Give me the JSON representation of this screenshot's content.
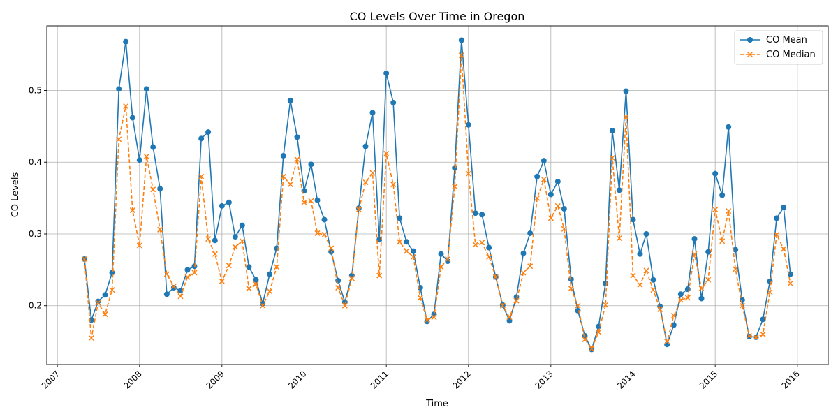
{
  "chart_data": {
    "type": "line",
    "title": "CO Levels Over Time in Oregon",
    "xlabel": "Time",
    "ylabel": "CO Levels",
    "xlim": [
      "2006-11-15",
      "2016-05-17"
    ],
    "ylim": [
      0.118,
      0.59
    ],
    "x_ticks": [
      "2007",
      "2008",
      "2009",
      "2010",
      "2011",
      "2012",
      "2013",
      "2014",
      "2015",
      "2016"
    ],
    "y_ticks": [
      "0.2",
      "0.3",
      "0.4",
      "0.5"
    ],
    "grid": true,
    "legend_position": "top-right",
    "x": [
      "2007-05",
      "2007-06",
      "2007-07",
      "2007-08",
      "2007-09",
      "2007-10",
      "2007-11",
      "2007-12",
      "2008-01",
      "2008-02",
      "2008-03",
      "2008-04",
      "2008-05",
      "2008-06",
      "2008-07",
      "2008-08",
      "2008-09",
      "2008-10",
      "2008-11",
      "2008-12",
      "2009-01",
      "2009-02",
      "2009-03",
      "2009-04",
      "2009-05",
      "2009-06",
      "2009-07",
      "2009-08",
      "2009-09",
      "2009-10",
      "2009-11",
      "2009-12",
      "2010-01",
      "2010-02",
      "2010-03",
      "2010-04",
      "2010-05",
      "2010-06",
      "2010-07",
      "2010-08",
      "2010-09",
      "2010-10",
      "2010-11",
      "2010-12",
      "2011-01",
      "2011-02",
      "2011-03",
      "2011-04",
      "2011-05",
      "2011-06",
      "2011-07",
      "2011-08",
      "2011-09",
      "2011-10",
      "2011-11",
      "2011-12",
      "2012-01",
      "2012-02",
      "2012-03",
      "2012-04",
      "2012-05",
      "2012-06",
      "2012-07",
      "2012-08",
      "2012-09",
      "2012-10",
      "2012-11",
      "2012-12",
      "2013-01",
      "2013-02",
      "2013-03",
      "2013-04",
      "2013-05",
      "2013-06",
      "2013-07",
      "2013-08",
      "2013-09",
      "2013-10",
      "2013-11",
      "2013-12",
      "2014-01",
      "2014-02",
      "2014-03",
      "2014-04",
      "2014-05",
      "2014-06",
      "2014-07",
      "2014-08",
      "2014-09",
      "2014-10",
      "2014-11",
      "2014-12",
      "2015-01",
      "2015-02",
      "2015-03",
      "2015-04",
      "2015-05",
      "2015-06",
      "2015-07",
      "2015-08",
      "2015-09",
      "2015-10",
      "2015-11",
      "2015-12"
    ],
    "series": [
      {
        "name": "CO Mean",
        "color": "#1f77b4",
        "linestyle": "solid",
        "marker": "circle",
        "values": [
          0.265,
          0.18,
          0.206,
          0.215,
          0.246,
          0.502,
          0.568,
          0.462,
          0.403,
          0.502,
          0.421,
          0.363,
          0.216,
          0.225,
          0.221,
          0.25,
          0.255,
          0.433,
          0.442,
          0.291,
          0.339,
          0.344,
          0.296,
          0.312,
          0.254,
          0.236,
          0.203,
          0.244,
          0.28,
          0.409,
          0.486,
          0.435,
          0.36,
          0.397,
          0.347,
          0.32,
          0.275,
          0.235,
          0.205,
          0.242,
          0.336,
          0.422,
          0.469,
          0.292,
          0.524,
          0.483,
          0.322,
          0.289,
          0.276,
          0.225,
          0.178,
          0.188,
          0.272,
          0.262,
          0.392,
          0.57,
          0.452,
          0.329,
          0.327,
          0.281,
          0.24,
          0.201,
          0.179,
          0.212,
          0.273,
          0.301,
          0.38,
          0.402,
          0.355,
          0.373,
          0.335,
          0.237,
          0.193,
          0.158,
          0.139,
          0.171,
          0.231,
          0.444,
          0.361,
          0.499,
          0.32,
          0.272,
          0.3,
          0.236,
          0.199,
          0.146,
          0.173,
          0.216,
          0.223,
          0.293,
          0.21,
          0.275,
          0.384,
          0.354,
          0.449,
          0.278,
          0.208,
          0.157,
          0.156,
          0.181,
          0.234,
          0.322,
          0.337,
          0.244
        ]
      },
      {
        "name": "CO Median",
        "color": "#ff7f0e",
        "linestyle": "dashed",
        "marker": "x",
        "values": [
          0.265,
          0.155,
          0.204,
          0.188,
          0.222,
          0.432,
          0.478,
          0.333,
          0.284,
          0.408,
          0.362,
          0.306,
          0.244,
          0.227,
          0.213,
          0.24,
          0.246,
          0.38,
          0.293,
          0.272,
          0.234,
          0.256,
          0.282,
          0.29,
          0.224,
          0.23,
          0.2,
          0.22,
          0.254,
          0.38,
          0.369,
          0.404,
          0.344,
          0.346,
          0.301,
          0.299,
          0.28,
          0.225,
          0.2,
          0.238,
          0.334,
          0.372,
          0.385,
          0.242,
          0.412,
          0.369,
          0.289,
          0.276,
          0.268,
          0.211,
          0.18,
          0.184,
          0.254,
          0.265,
          0.366,
          0.549,
          0.384,
          0.285,
          0.288,
          0.268,
          0.24,
          0.2,
          0.184,
          0.207,
          0.246,
          0.255,
          0.35,
          0.376,
          0.322,
          0.339,
          0.307,
          0.224,
          0.2,
          0.153,
          0.14,
          0.163,
          0.201,
          0.406,
          0.294,
          0.463,
          0.242,
          0.229,
          0.249,
          0.222,
          0.195,
          0.15,
          0.186,
          0.208,
          0.211,
          0.272,
          0.224,
          0.236,
          0.334,
          0.29,
          0.332,
          0.251,
          0.2,
          0.158,
          0.156,
          0.16,
          0.219,
          0.299,
          0.279,
          0.231
        ]
      }
    ]
  }
}
